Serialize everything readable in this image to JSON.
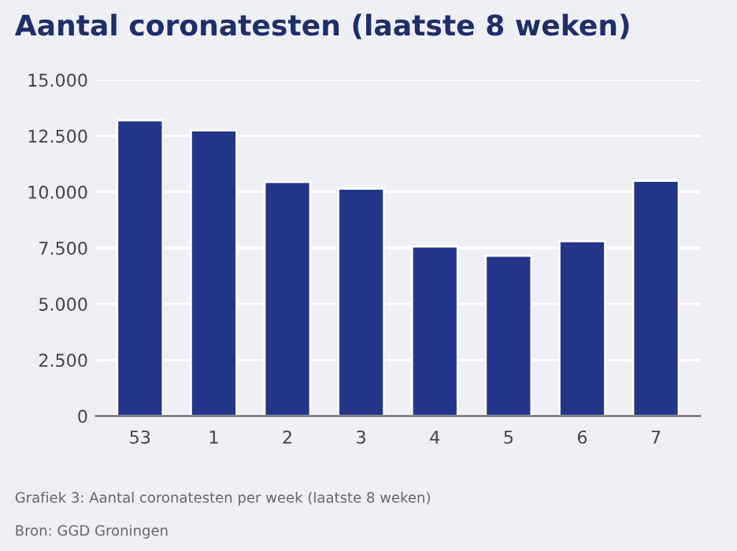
{
  "chart_data": {
    "type": "bar",
    "title": "Aantal coronatesten (laatste 8 weken)",
    "categories": [
      "53",
      "1",
      "2",
      "3",
      "4",
      "5",
      "6",
      "7"
    ],
    "values": [
      13200,
      12750,
      10450,
      10150,
      7570,
      7150,
      7800,
      10500
    ],
    "color": "#24368a",
    "ylim": [
      0,
      15000
    ],
    "yticks": [
      {
        "value": 0,
        "label": "0"
      },
      {
        "value": 2500,
        "label": "2.500"
      },
      {
        "value": 5000,
        "label": "5.000"
      },
      {
        "value": 7500,
        "label": "7.500"
      },
      {
        "value": 10000,
        "label": "10.000"
      },
      {
        "value": 12500,
        "label": "12.500"
      },
      {
        "value": 15000,
        "label": "15.000"
      }
    ],
    "grid": "y",
    "annotations": [
      "Grafiek 3: Aantal coronatesten per week (laatste 8 weken)",
      "Bron: GGD Groningen"
    ]
  }
}
